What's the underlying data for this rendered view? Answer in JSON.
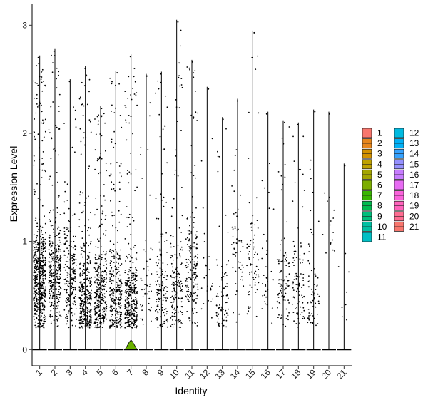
{
  "chart_data": {
    "type": "violin",
    "xlabel": "Identity",
    "ylabel": "Expression Level",
    "ylim": [
      -0.15,
      3.2
    ],
    "yticks": [
      0,
      1,
      2,
      3
    ],
    "grid": false,
    "legend_position": "right",
    "legend_columns": 2,
    "categories": [
      "1",
      "2",
      "3",
      "4",
      "5",
      "6",
      "7",
      "8",
      "9",
      "10",
      "11",
      "12",
      "13",
      "14",
      "15",
      "16",
      "17",
      "18",
      "19",
      "20",
      "21"
    ],
    "colors": [
      "#F8766D",
      "#E58700",
      "#C99800",
      "#A3A500",
      "#6BB100",
      "#00BA38",
      "#00BF7D",
      "#00C0AF",
      "#00BCD8",
      "#00B0F6",
      "#619CFF",
      "#B983FF",
      "#E76BF3",
      "#FD61D1",
      "#FF67A4",
      "#F8766D",
      "#E58700",
      "#C99800",
      "#A3A500",
      "#6BB100",
      "#00BA38"
    ],
    "legend_colors": [
      "#F8766D",
      "#E7861B",
      "#D39200",
      "#BFA200",
      "#A3A500",
      "#7CAE00",
      "#39B600",
      "#00BB4E",
      "#00BF7D",
      "#00C1A3",
      "#00BFC4",
      "#00BAE0",
      "#00B0F6",
      "#35A2FF",
      "#9590FF",
      "#C77CFF",
      "#E76BF3",
      "#FA62DB",
      "#FF62BC",
      "#FF6C91",
      "#F8766D"
    ],
    "max_values": [
      2.72,
      2.78,
      2.5,
      2.62,
      2.25,
      2.58,
      2.73,
      2.55,
      2.57,
      3.05,
      2.68,
      2.43,
      2.15,
      2.32,
      2.95,
      2.2,
      2.12,
      2.1,
      2.22,
      2.2,
      1.72
    ],
    "nonzero_counts": [
      620,
      330,
      210,
      360,
      330,
      300,
      360,
      50,
      140,
      160,
      180,
      25,
      75,
      55,
      70,
      35,
      90,
      90,
      65,
      15,
      8
    ],
    "nonzero_medians": [
      0.62,
      0.72,
      0.7,
      0.45,
      0.5,
      0.5,
      0.45,
      0.6,
      0.55,
      0.55,
      0.75,
      0.6,
      0.45,
      0.9,
      0.8,
      0.6,
      0.6,
      0.6,
      0.5,
      1.2,
      0.5
    ]
  }
}
